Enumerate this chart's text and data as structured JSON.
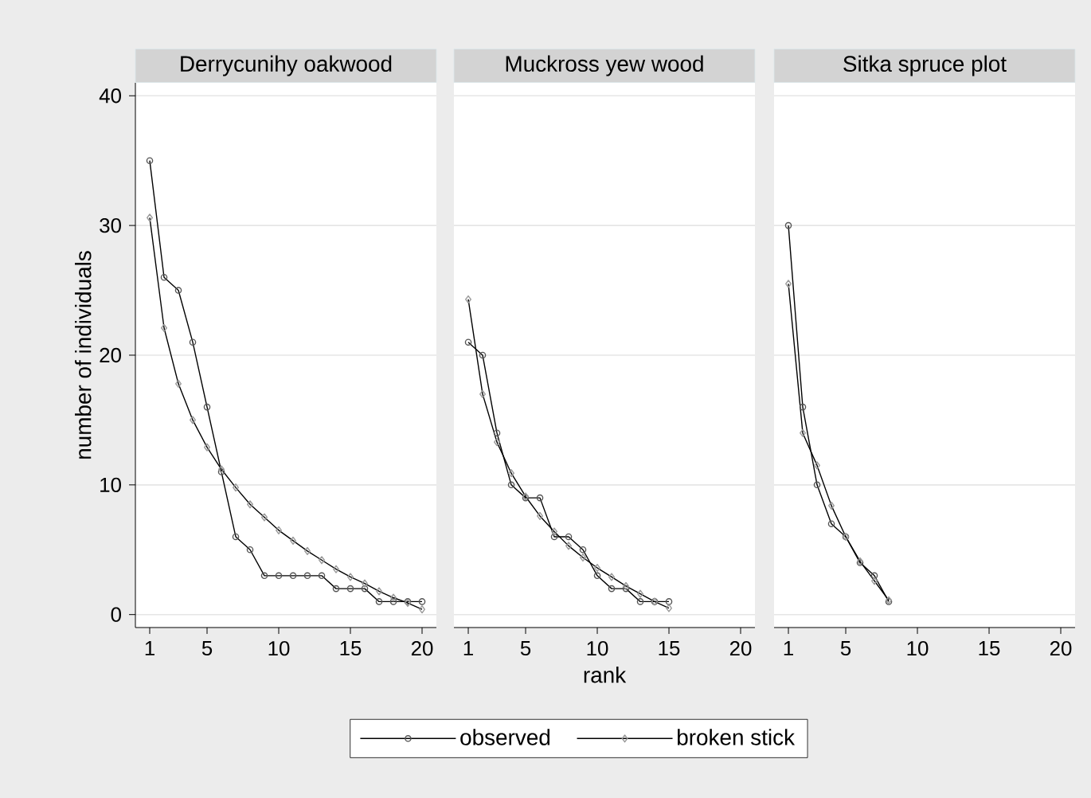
{
  "chart_data": [
    {
      "type": "line",
      "title": "Derrycunihy oakwood",
      "ylabel": "number of individuals",
      "x": [
        1,
        2,
        3,
        4,
        5,
        6,
        7,
        8,
        9,
        10,
        11,
        12,
        13,
        14,
        15,
        16,
        17,
        18,
        19,
        20
      ],
      "series": [
        {
          "color": "#000000",
          "marker": "circle",
          "values": [
            35,
            26,
            25,
            21,
            16,
            11,
            6,
            5,
            3,
            3,
            3,
            3,
            3,
            2,
            2,
            2,
            1,
            1,
            1,
            1
          ]
        },
        {
          "color": "#000000",
          "marker": "diamond",
          "values": [
            30.6,
            22.1,
            17.8,
            15.0,
            12.9,
            11.2,
            9.8,
            8.5,
            7.5,
            6.5,
            5.7,
            4.9,
            4.2,
            3.5,
            2.9,
            2.4,
            1.8,
            1.3,
            0.9,
            0.4
          ]
        }
      ],
      "xlim": [
        0,
        21
      ],
      "xticks": [
        1,
        5,
        10,
        15,
        20
      ],
      "ylim": [
        -1,
        41
      ],
      "yticks": [
        0,
        10,
        20,
        30,
        40
      ],
      "grid": "y"
    },
    {
      "type": "line",
      "title": "Muckross yew wood",
      "xlabel": "rank",
      "x": [
        1,
        2,
        3,
        4,
        5,
        6,
        7,
        8,
        9,
        10,
        11,
        12,
        13,
        14,
        15
      ],
      "series": [
        {
          "name": "observed",
          "color": "#000000",
          "marker": "circle",
          "values": [
            21,
            20,
            14,
            10,
            9,
            9,
            6,
            6,
            5,
            3,
            2,
            2,
            1,
            1,
            1
          ]
        },
        {
          "name": "broken stick",
          "color": "#000000",
          "marker": "diamond",
          "values": [
            24.3,
            17.0,
            13.3,
            10.9,
            9.1,
            7.6,
            6.4,
            5.3,
            4.4,
            3.6,
            2.9,
            2.2,
            1.6,
            1.0,
            0.5
          ]
        }
      ],
      "xlim": [
        0,
        21
      ],
      "xticks": [
        1,
        5,
        10,
        15,
        20
      ],
      "ylim": [
        -1,
        41
      ],
      "yticks": [
        0,
        10,
        20,
        30,
        40
      ],
      "grid": "y",
      "tick_labels": "x",
      "legend": "bottom"
    },
    {
      "type": "line",
      "title": "Sitka spruce plot",
      "x": [
        1,
        2,
        3,
        4,
        5,
        6,
        7,
        8
      ],
      "series": [
        {
          "color": "#000000",
          "marker": "circle",
          "values": [
            30,
            16,
            10,
            7,
            6,
            4,
            3,
            1
          ]
        },
        {
          "color": "#000000",
          "marker": "diamond",
          "values": [
            25.5,
            14.0,
            11.5,
            8.4,
            6.0,
            4.1,
            2.6,
            1.1
          ]
        }
      ],
      "xlim": [
        0,
        21
      ],
      "xticks": [
        1,
        5,
        10,
        15,
        20
      ],
      "ylim": [
        -1,
        41
      ],
      "yticks": [
        0,
        10,
        20,
        30,
        40
      ],
      "grid": "y",
      "tick_labels": "x"
    }
  ]
}
